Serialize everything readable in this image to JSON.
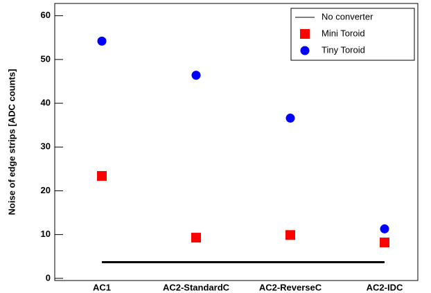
{
  "chart_data": {
    "type": "scatter",
    "y_label": "Noise of edge strips [ADC counts]",
    "categories": [
      "AC1",
      "AC2-StandardC",
      "AC2-ReverseC",
      "AC2-IDC"
    ],
    "series": [
      {
        "name": "No converter",
        "color": "#000000",
        "marker": "line",
        "values": [
          3.7,
          3.7,
          3.7,
          3.7
        ]
      },
      {
        "name": "Mini Toroid",
        "color": "#ff0000",
        "marker": "square",
        "values": [
          23.4,
          9.3,
          9.9,
          8.2
        ]
      },
      {
        "name": "Tiny Toroid",
        "color": "#0000ff",
        "marker": "circle",
        "values": [
          54.2,
          46.4,
          36.6,
          11.3
        ]
      }
    ],
    "ylim": [
      -0.5,
      62.8
    ],
    "yticks": [
      0,
      10,
      20,
      30,
      40,
      50,
      60
    ],
    "legend": "top-right",
    "grid": false
  }
}
